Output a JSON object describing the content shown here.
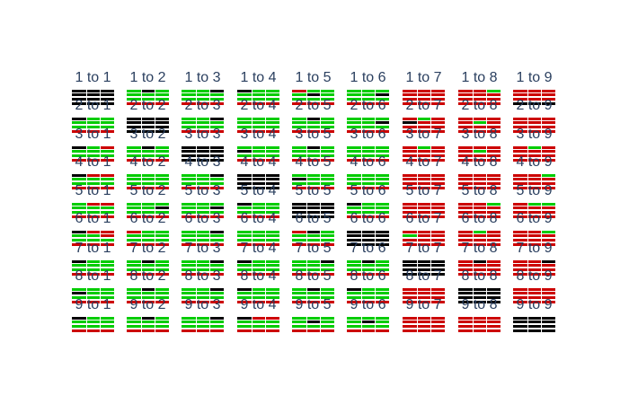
{
  "colors": {
    "green": "#00cc00",
    "red": "#cc0000",
    "black": "#000000"
  },
  "labels": [
    [
      "1 to 1",
      "1 to 2",
      "1 to 3",
      "1 to 4",
      "1 to 5",
      "1 to 6",
      "1 to 7",
      "1 to 8",
      "1 to 9"
    ],
    [
      "2 to 1",
      "2 to 2",
      "2 to 3",
      "2 to 4",
      "2 to 5",
      "2 to 6",
      "2 to 7",
      "2 to 8",
      "2 to 9"
    ],
    [
      "3 to 1",
      "3 to 2",
      "3 to 3",
      "3 to 4",
      "3 to 5",
      "3 to 6",
      "3 to 7",
      "3 to 8",
      "3 to 9"
    ],
    [
      "4 to 1",
      "4 to 2",
      "4 to 3",
      "4 to 4",
      "4 to 5",
      "4 to 6",
      "4 to 7",
      "4 to 8",
      "4 to 9"
    ],
    [
      "5 to 1",
      "5 to 2",
      "5 to 3",
      "5 to 4",
      "5 to 5",
      "5 to 6",
      "5 to 7",
      "5 to 8",
      "5 to 9"
    ],
    [
      "6 to 1",
      "6 to 2",
      "6 to 3",
      "6 to 4",
      "6 to 5",
      "6 to 6",
      "6 to 7",
      "6 to 8",
      "6 to 9"
    ],
    [
      "7 to 1",
      "7 to 2",
      "7 to 3",
      "7 to 4",
      "7 to 5",
      "7 to 6",
      "7 to 7",
      "7 to 8",
      "7 to 9"
    ],
    [
      "8 to 1",
      "8 to 2",
      "8 to 3",
      "8 to 4",
      "8 to 5",
      "8 to 6",
      "8 to 7",
      "8 to 8",
      "8 to 9"
    ],
    [
      "9 to 1",
      "9 to 2",
      "9 to 3",
      "9 to 4",
      "9 to 5",
      "9 to 6",
      "9 to 7",
      "9 to 8",
      "9 to 9"
    ]
  ],
  "cells": [
    [
      [
        "KKK",
        "KKK",
        "KKK",
        "KKK"
      ],
      [
        "GKG",
        "GGG",
        "GGG",
        "RRR"
      ],
      [
        "GGK",
        "GGG",
        "GGG",
        "RRR"
      ],
      [
        "KGG",
        "GGG",
        "GGG",
        "RRR"
      ],
      [
        "RGG",
        "GKG",
        "GGG",
        "RRR"
      ],
      [
        "GGG",
        "GGK",
        "GGG",
        "RRR"
      ],
      [
        "RRR",
        "RRR",
        "RRR",
        "RRR"
      ],
      [
        "RRG",
        "RRR",
        "RRR",
        "RRR"
      ],
      [
        "RRR",
        "RRR",
        "RRR",
        "KKK"
      ]
    ],
    [
      [
        "KGG",
        "GGG",
        "GGG",
        "RRR"
      ],
      [
        "KKK",
        "KKK",
        "KKK",
        "KKK"
      ],
      [
        "GGK",
        "GGG",
        "GGG",
        "RRR"
      ],
      [
        "GGG",
        "GGG",
        "GGG",
        "RRR"
      ],
      [
        "GKG",
        "GGG",
        "GGG",
        "RRR"
      ],
      [
        "GGG",
        "GGK",
        "GGG",
        "RRR"
      ],
      [
        "RGR",
        "KRR",
        "RRR",
        "RRR"
      ],
      [
        "RRR",
        "RGR",
        "RRR",
        "RRR"
      ],
      [
        "RRR",
        "RRR",
        "RRR",
        "RRR"
      ]
    ],
    [
      [
        "KGR",
        "GGG",
        "GGG",
        "RRR"
      ],
      [
        "GKG",
        "GGG",
        "GGG",
        "RRR"
      ],
      [
        "KKK",
        "KKK",
        "KKK",
        "KKK"
      ],
      [
        "GGG",
        "KGG",
        "GGG",
        "RRR"
      ],
      [
        "GKG",
        "GGG",
        "GGG",
        "RRR"
      ],
      [
        "GGG",
        "GGG",
        "GGG",
        "RRR"
      ],
      [
        "RGR",
        "RRR",
        "RRR",
        "RRR"
      ],
      [
        "RRR",
        "RGR",
        "RRR",
        "RRR"
      ],
      [
        "RGR",
        "RRR",
        "RRR",
        "RRR"
      ]
    ],
    [
      [
        "KRR",
        "GGG",
        "GGG",
        "RRR"
      ],
      [
        "GGG",
        "GGG",
        "GGG",
        "RRR"
      ],
      [
        "GGK",
        "GGG",
        "GGG",
        "RRR"
      ],
      [
        "KKK",
        "KKK",
        "KKK",
        "KKK"
      ],
      [
        "GGG",
        "KGG",
        "GGG",
        "RRR"
      ],
      [
        "GGG",
        "GGG",
        "GGG",
        "RRR"
      ],
      [
        "RRR",
        "RRR",
        "RRR",
        "RRR"
      ],
      [
        "RRR",
        "RRR",
        "RRR",
        "RRR"
      ],
      [
        "RRG",
        "RRR",
        "RRR",
        "RRR"
      ]
    ],
    [
      [
        "GRR",
        "GGG",
        "GGG",
        "RRR"
      ],
      [
        "GGG",
        "GGK",
        "GGG",
        "RRR"
      ],
      [
        "GGG",
        "GGK",
        "GGG",
        "RRR"
      ],
      [
        "KGG",
        "GGG",
        "GGG",
        "RRR"
      ],
      [
        "KKK",
        "KKK",
        "KKK",
        "KKK"
      ],
      [
        "KGG",
        "GGG",
        "GGG",
        "RRR"
      ],
      [
        "RRR",
        "RRR",
        "RRR",
        "RRR"
      ],
      [
        "RRG",
        "RRR",
        "RRR",
        "RRR"
      ],
      [
        "RGG",
        "RRR",
        "RRR",
        "RRR"
      ]
    ],
    [
      [
        "KRR",
        "GGR",
        "GGG",
        "RRR"
      ],
      [
        "RGG",
        "GGG",
        "GGG",
        "RRR"
      ],
      [
        "GGK",
        "GGG",
        "GGG",
        "RRR"
      ],
      [
        "GGG",
        "GGG",
        "GGG",
        "RRR"
      ],
      [
        "RKG",
        "GGG",
        "GGG",
        "RRR"
      ],
      [
        "KKK",
        "KKK",
        "KKK",
        "KKK"
      ],
      [
        "RRR",
        "GRR",
        "RRR",
        "RRR"
      ],
      [
        "RGR",
        "RRR",
        "RRR",
        "RRR"
      ],
      [
        "RRG",
        "RRR",
        "RRR",
        "RRR"
      ]
    ],
    [
      [
        "KGG",
        "GGG",
        "GGG",
        "RRR"
      ],
      [
        "GKG",
        "GGG",
        "GGG",
        "RRR"
      ],
      [
        "GGK",
        "GGG",
        "GGG",
        "RRR"
      ],
      [
        "KGG",
        "GGG",
        "GGG",
        "RRR"
      ],
      [
        "GGK",
        "GGG",
        "GGG",
        "RRR"
      ],
      [
        "GKG",
        "GGG",
        "GGG",
        "RRR"
      ],
      [
        "KKK",
        "KKK",
        "KKK",
        "KKK"
      ],
      [
        "RKR",
        "RRR",
        "RRR",
        "RRR"
      ],
      [
        "RRK",
        "RRR",
        "RRR",
        "RRR"
      ]
    ],
    [
      [
        "GGG",
        "KGG",
        "GGG",
        "RRR"
      ],
      [
        "GKG",
        "GGG",
        "GGG",
        "RRR"
      ],
      [
        "GGK",
        "GGG",
        "GGG",
        "RRR"
      ],
      [
        "KGG",
        "GGG",
        "GGG",
        "RRR"
      ],
      [
        "GKG",
        "GGG",
        "GGG",
        "RRR"
      ],
      [
        "KGG",
        "GGG",
        "GGG",
        "RRR"
      ],
      [
        "RRR",
        "RRR",
        "RRR",
        "RRR"
      ],
      [
        "KKK",
        "KKK",
        "KKK",
        "KKK"
      ],
      [
        "RRR",
        "RRR",
        "RRR",
        "RRR"
      ]
    ],
    [
      [
        "KGG",
        "GGG",
        "GGG",
        "RRR"
      ],
      [
        "GKG",
        "GGG",
        "GGG",
        "RRR"
      ],
      [
        "GGK",
        "GGG",
        "GGG",
        "RRR"
      ],
      [
        "KRR",
        "GGG",
        "GGG",
        "RRR"
      ],
      [
        "GGG",
        "GKG",
        "GGG",
        "RRR"
      ],
      [
        "GGG",
        "GKG",
        "GGG",
        "RRR"
      ],
      [
        "RRR",
        "RRR",
        "RRR",
        "RRR"
      ],
      [
        "RRR",
        "RRR",
        "RRR",
        "RRR"
      ],
      [
        "KKK",
        "KKK",
        "KKK",
        "KKK"
      ]
    ]
  ]
}
